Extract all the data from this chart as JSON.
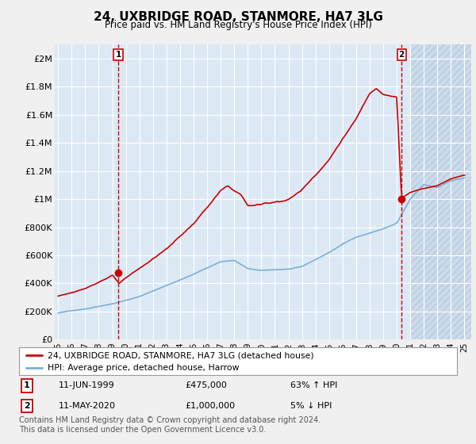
{
  "title": "24, UXBRIDGE ROAD, STANMORE, HA7 3LG",
  "subtitle": "Price paid vs. HM Land Registry's House Price Index (HPI)",
  "title_fontsize": 11,
  "subtitle_fontsize": 8.5,
  "xlim": [
    1994.75,
    2025.5
  ],
  "ylim": [
    0,
    2100000
  ],
  "yticks": [
    0,
    200000,
    400000,
    600000,
    800000,
    1000000,
    1200000,
    1400000,
    1600000,
    1800000,
    2000000
  ],
  "ytick_labels": [
    "£0",
    "£200K",
    "£400K",
    "£600K",
    "£800K",
    "£1M",
    "£1.2M",
    "£1.4M",
    "£1.6M",
    "£1.8M",
    "£2M"
  ],
  "xticks": [
    1995,
    1996,
    1997,
    1998,
    1999,
    2000,
    2001,
    2002,
    2003,
    2004,
    2005,
    2006,
    2007,
    2008,
    2009,
    2010,
    2011,
    2012,
    2013,
    2014,
    2015,
    2016,
    2017,
    2018,
    2019,
    2020,
    2021,
    2022,
    2023,
    2024,
    2025
  ],
  "xtick_labels": [
    "95",
    "96",
    "97",
    "98",
    "99",
    "00",
    "01",
    "02",
    "03",
    "04",
    "05",
    "06",
    "07",
    "08",
    "09",
    "10",
    "11",
    "12",
    "13",
    "14",
    "15",
    "16",
    "17",
    "18",
    "19",
    "20",
    "21",
    "22",
    "23",
    "24",
    "25"
  ],
  "plot_bg": "#dce9f5",
  "hatch_bg": "#c8d8e8",
  "grid_color": "#ffffff",
  "red_line_color": "#cc0000",
  "blue_line_color": "#7ab0d4",
  "marker_color": "#cc0000",
  "dashed_line_color": "#cc0000",
  "legend_label_red": "24, UXBRIDGE ROAD, STANMORE, HA7 3LG (detached house)",
  "legend_label_blue": "HPI: Average price, detached house, Harrow",
  "point1_x": 1999.44,
  "point1_y": 475000,
  "point1_label": "1",
  "point2_x": 2020.36,
  "point2_y": 1000000,
  "point2_label": "2",
  "hatch_start": 2021.0,
  "footer": "Contains HM Land Registry data © Crown copyright and database right 2024.\nThis data is licensed under the Open Government Licence v3.0.",
  "note_fontsize": 7.0
}
